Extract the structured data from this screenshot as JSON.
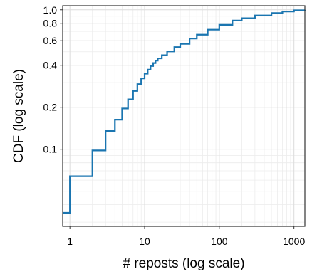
{
  "chart_data": {
    "type": "line",
    "step": true,
    "xlabel": "# reposts (log scale)",
    "ylabel": "CDF (log scale)",
    "x_scale": "log",
    "y_scale": "log",
    "xlim": [
      0.8,
      1400
    ],
    "ylim": [
      0.028,
      1.07
    ],
    "x_ticks": [
      {
        "value": 1,
        "label": "1"
      },
      {
        "value": 10,
        "label": "10"
      },
      {
        "value": 100,
        "label": "100"
      },
      {
        "value": 1000,
        "label": "1000"
      }
    ],
    "y_ticks": [
      {
        "value": 0.1,
        "label": "0.1"
      },
      {
        "value": 0.2,
        "label": "0.2"
      },
      {
        "value": 0.4,
        "label": "0.4"
      },
      {
        "value": 0.6,
        "label": "0.6"
      },
      {
        "value": 0.8,
        "label": "0.8"
      },
      {
        "value": 1.0,
        "label": "1.0"
      }
    ],
    "grid": true,
    "line_color": "#1a75b0",
    "grid_color": "#dcdcdc",
    "series": [
      {
        "x": [
          0.8,
          1,
          2,
          3,
          4,
          5,
          6,
          7,
          8,
          9,
          10,
          11,
          12,
          13,
          14,
          15,
          17,
          20,
          25,
          30,
          40,
          50,
          70,
          100,
          150,
          200,
          300,
          500,
          700,
          1000,
          1400
        ],
        "y": [
          0.035,
          0.064,
          0.098,
          0.135,
          0.163,
          0.196,
          0.228,
          0.262,
          0.293,
          0.322,
          0.348,
          0.372,
          0.395,
          0.415,
          0.432,
          0.448,
          0.472,
          0.503,
          0.54,
          0.57,
          0.622,
          0.663,
          0.72,
          0.78,
          0.838,
          0.87,
          0.91,
          0.948,
          0.972,
          0.992,
          1.0
        ]
      }
    ]
  }
}
